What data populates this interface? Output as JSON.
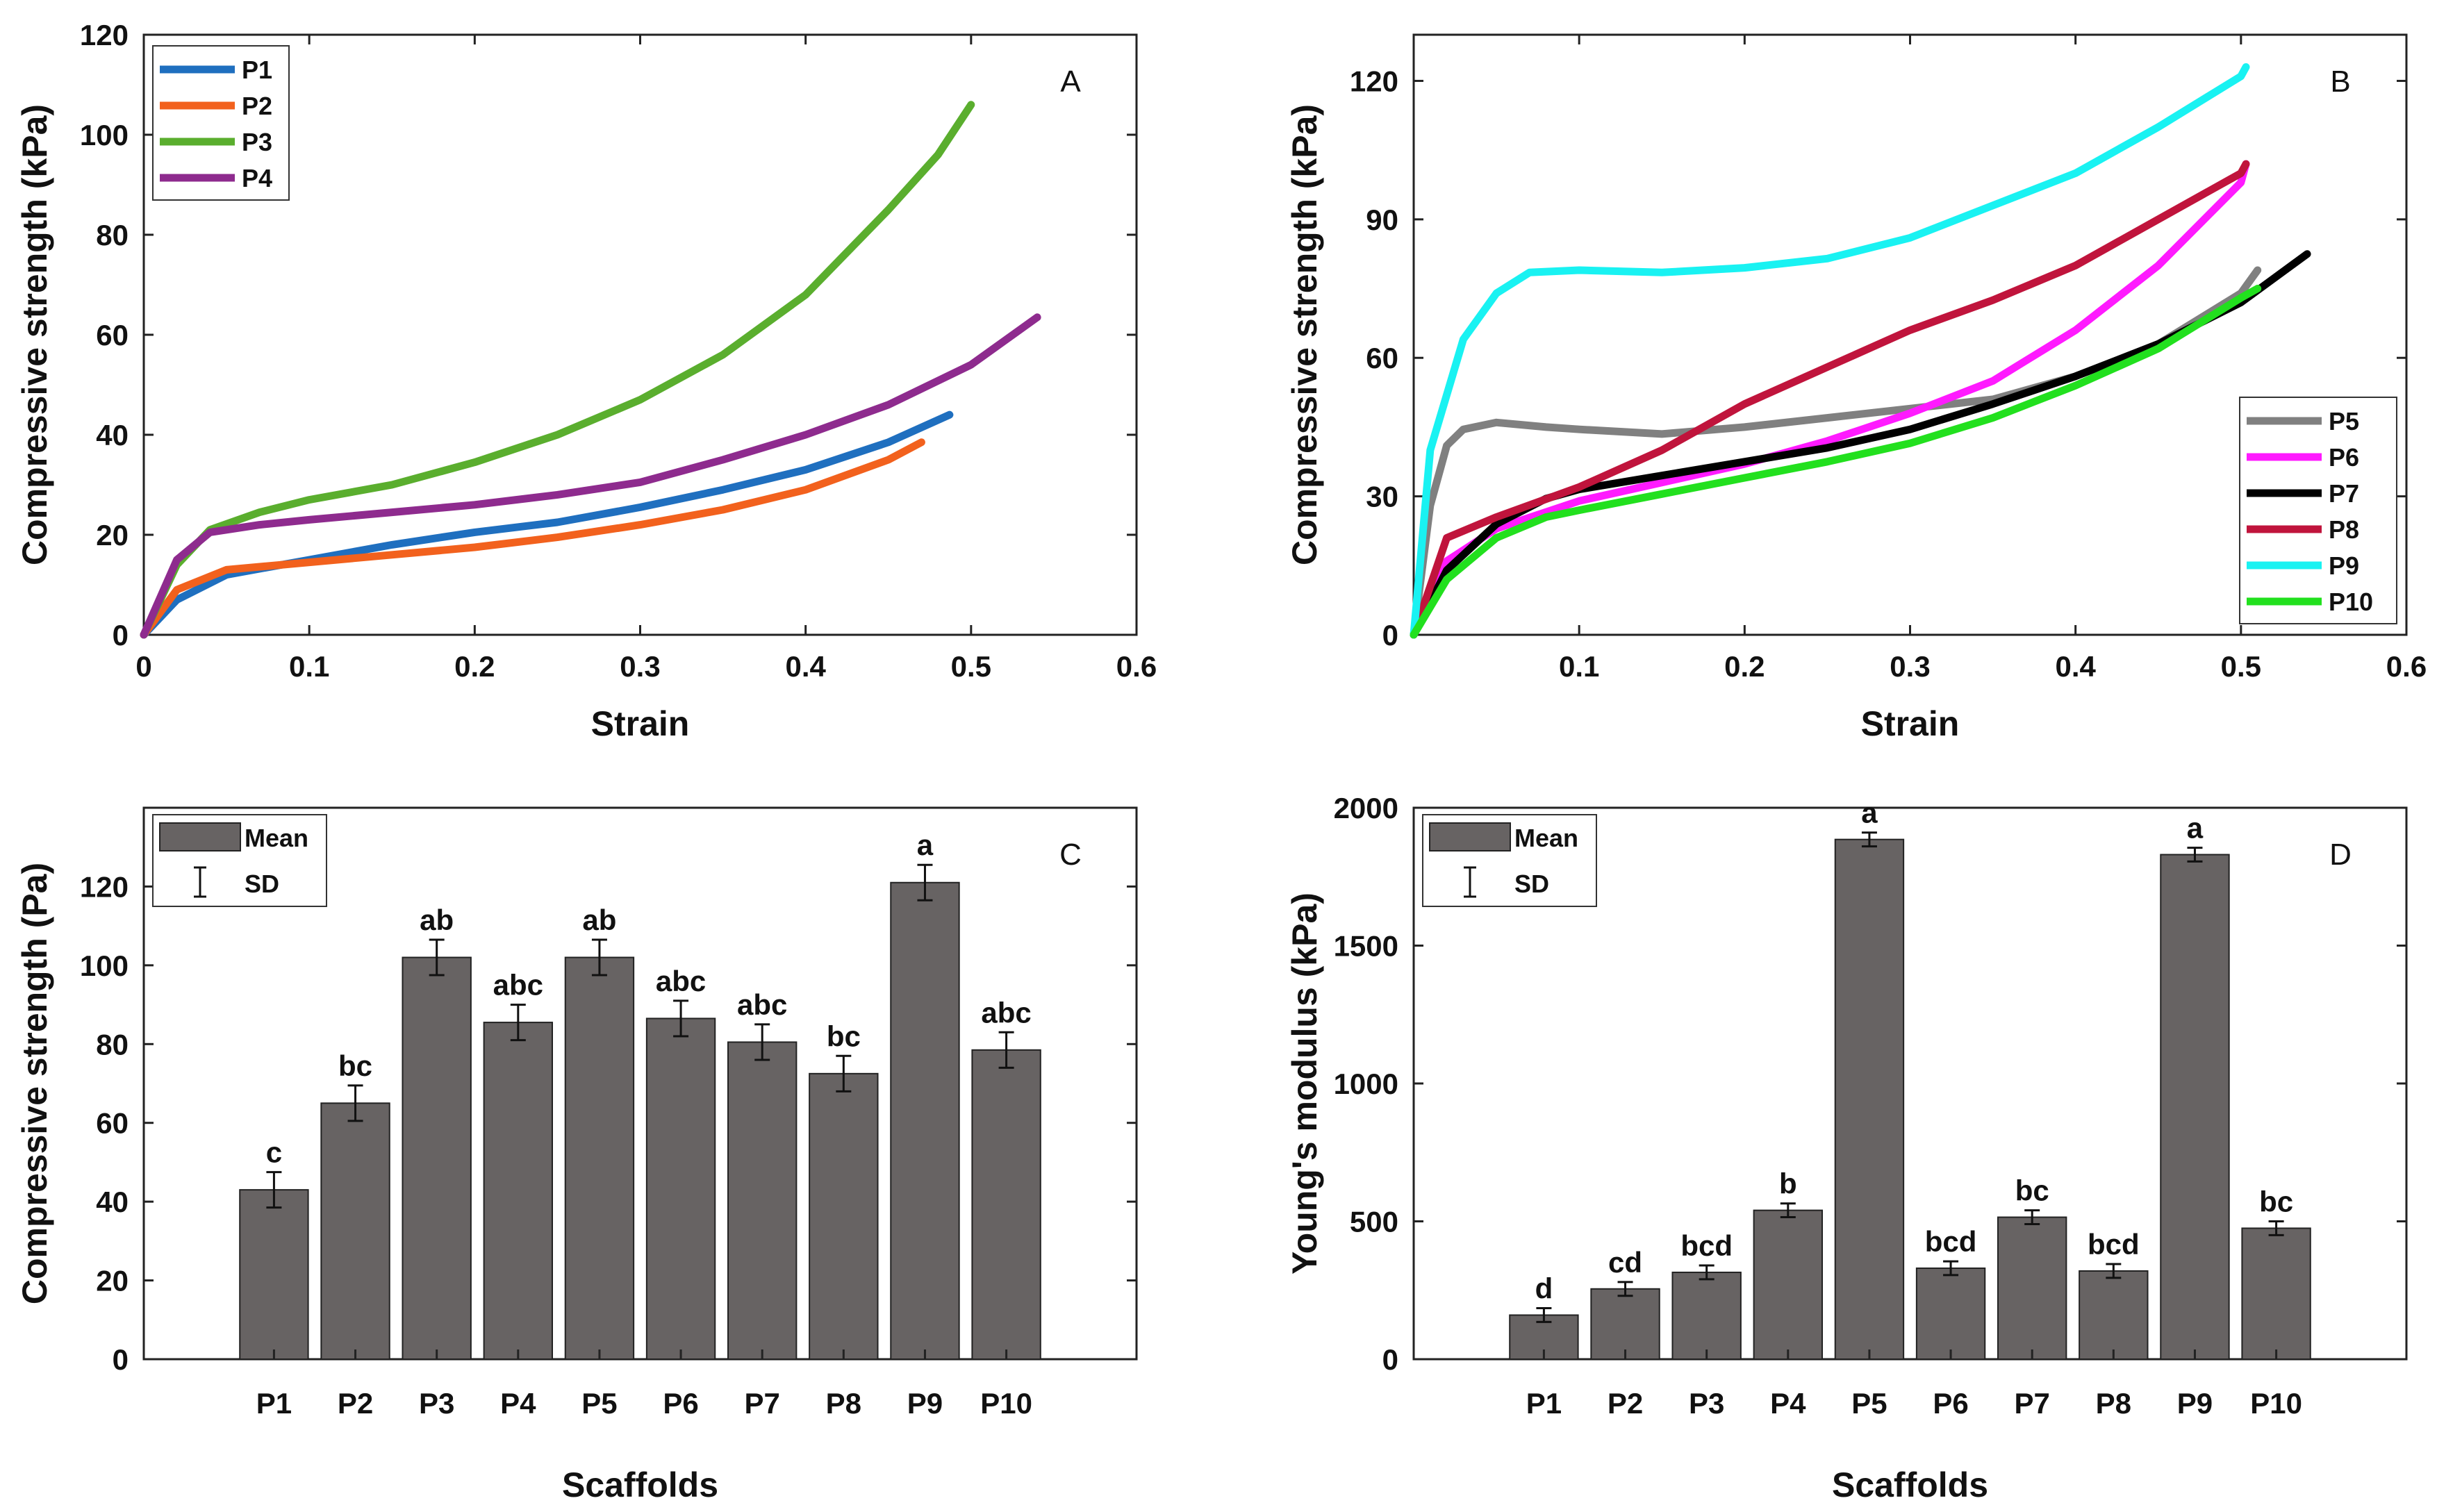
{
  "chart_data": [
    {
      "panel": "A",
      "type": "line",
      "xlabel": "Strain",
      "ylabel": "Compressive strength (kPa)",
      "xlim": [
        0,
        0.6
      ],
      "ylim": [
        0,
        120
      ],
      "xticks": [
        "0",
        "0.1",
        "0.2",
        "0.3",
        "0.4",
        "0.5",
        "0.6"
      ],
      "yticks": [
        "0",
        "20",
        "40",
        "60",
        "80",
        "100",
        "120"
      ],
      "legend_position": "top-left",
      "series": [
        {
          "name": "P1",
          "color": "#1f6fbf",
          "x": [
            0,
            0.02,
            0.05,
            0.1,
            0.15,
            0.2,
            0.25,
            0.3,
            0.35,
            0.4,
            0.45,
            0.487
          ],
          "y": [
            0,
            7,
            12,
            15,
            18,
            20.5,
            22.5,
            25.5,
            29,
            33,
            38.5,
            44
          ]
        },
        {
          "name": "P2",
          "color": "#f2611d",
          "x": [
            0,
            0.02,
            0.05,
            0.1,
            0.15,
            0.2,
            0.25,
            0.3,
            0.35,
            0.4,
            0.45,
            0.47
          ],
          "y": [
            0,
            9,
            13,
            14.5,
            16,
            17.5,
            19.5,
            22,
            25,
            29,
            35,
            38.5
          ]
        },
        {
          "name": "P3",
          "color": "#5aae2e",
          "x": [
            0,
            0.02,
            0.04,
            0.07,
            0.1,
            0.15,
            0.2,
            0.25,
            0.3,
            0.35,
            0.4,
            0.45,
            0.48,
            0.5
          ],
          "y": [
            0,
            14,
            21,
            24.5,
            27,
            30,
            34.5,
            40,
            47,
            56,
            68,
            85,
            96,
            106
          ]
        },
        {
          "name": "P4",
          "color": "#8e2b8e",
          "x": [
            0,
            0.02,
            0.04,
            0.07,
            0.1,
            0.15,
            0.2,
            0.25,
            0.3,
            0.35,
            0.4,
            0.45,
            0.5,
            0.54
          ],
          "y": [
            0,
            15,
            20.5,
            22,
            23,
            24.5,
            26,
            28,
            30.5,
            35,
            40,
            46,
            54,
            63.5
          ]
        }
      ]
    },
    {
      "panel": "B",
      "type": "line",
      "xlabel": "Strain",
      "ylabel": "Compressive strength (kPa)",
      "xlim": [
        0,
        0.6
      ],
      "ylim": [
        0,
        130
      ],
      "xticks": [
        "0.1",
        "0.2",
        "0.3",
        "0.4",
        "0.5",
        "0.6"
      ],
      "yticks": [
        "0",
        "30",
        "60",
        "90",
        "120"
      ],
      "legend_position": "bottom-right",
      "series": [
        {
          "name": "P5",
          "color": "#808080",
          "x": [
            0,
            0.01,
            0.02,
            0.03,
            0.05,
            0.08,
            0.1,
            0.15,
            0.2,
            0.25,
            0.3,
            0.35,
            0.4,
            0.45,
            0.5,
            0.51
          ],
          "y": [
            0,
            28,
            41,
            44.5,
            46,
            45,
            44.5,
            43.5,
            45,
            47,
            49,
            51,
            56,
            63,
            74,
            79
          ]
        },
        {
          "name": "P6",
          "color": "#ff1aff",
          "x": [
            0,
            0.02,
            0.05,
            0.1,
            0.15,
            0.2,
            0.25,
            0.3,
            0.35,
            0.4,
            0.45,
            0.5,
            0.503
          ],
          "y": [
            0,
            16,
            23,
            29,
            33,
            37,
            42,
            48,
            55,
            66,
            80,
            98,
            102
          ]
        },
        {
          "name": "P7",
          "color": "#000000",
          "x": [
            0,
            0.02,
            0.05,
            0.08,
            0.1,
            0.15,
            0.2,
            0.25,
            0.3,
            0.35,
            0.4,
            0.45,
            0.5,
            0.54
          ],
          "y": [
            0,
            14,
            24,
            29.5,
            31.5,
            34.5,
            37.5,
            40.5,
            44.5,
            50,
            56,
            63,
            72,
            82.5
          ]
        },
        {
          "name": "P8",
          "color": "#c0143c",
          "x": [
            0,
            0.02,
            0.05,
            0.1,
            0.15,
            0.2,
            0.25,
            0.3,
            0.35,
            0.4,
            0.45,
            0.5,
            0.503
          ],
          "y": [
            0,
            21,
            25.5,
            32,
            40,
            50,
            58,
            66,
            72.5,
            80,
            90,
            100,
            102
          ]
        },
        {
          "name": "P9",
          "color": "#19f2f2",
          "x": [
            0,
            0.01,
            0.03,
            0.05,
            0.07,
            0.1,
            0.15,
            0.2,
            0.25,
            0.3,
            0.35,
            0.4,
            0.45,
            0.5,
            0.503
          ],
          "y": [
            0,
            40,
            64,
            74,
            78.5,
            79,
            78.5,
            79.5,
            81.5,
            86,
            93,
            100,
            110,
            121,
            123
          ]
        },
        {
          "name": "P10",
          "color": "#22e01e",
          "x": [
            0,
            0.02,
            0.05,
            0.08,
            0.1,
            0.15,
            0.2,
            0.25,
            0.3,
            0.35,
            0.4,
            0.45,
            0.5,
            0.51
          ],
          "y": [
            0,
            12,
            21,
            25.5,
            27,
            30.5,
            34,
            37.5,
            41.5,
            47,
            54,
            62,
            73,
            75
          ]
        }
      ]
    },
    {
      "panel": "C",
      "type": "bar",
      "xlabel": "Scaffolds",
      "ylabel": "Compressive strength (Pa)",
      "ylim": [
        0,
        140
      ],
      "yticks": [
        "0",
        "20",
        "40",
        "60",
        "80",
        "100",
        "120"
      ],
      "categories": [
        "P1",
        "P2",
        "P3",
        "P4",
        "P5",
        "P6",
        "P7",
        "P8",
        "P9",
        "P10"
      ],
      "values": [
        43,
        65,
        102,
        85.5,
        102,
        86.5,
        80.5,
        72.5,
        121,
        78.5
      ],
      "errors": [
        4.5,
        4.5,
        4.5,
        4.5,
        4.5,
        4.5,
        4.5,
        4.5,
        4.5,
        4.5
      ],
      "sig_labels": [
        "c",
        "bc",
        "ab",
        "abc",
        "ab",
        "abc",
        "abc",
        "bc",
        "a",
        "abc"
      ],
      "bar_color": "#676363",
      "legend": [
        "Mean",
        "SD"
      ],
      "legend_position": "top-left"
    },
    {
      "panel": "D",
      "type": "bar",
      "xlabel": "Scaffolds",
      "ylabel": "Young's modulus  (kPa)",
      "ylim": [
        0,
        2000
      ],
      "yticks": [
        "0",
        "500",
        "1000",
        "1500",
        "2000"
      ],
      "categories": [
        "P1",
        "P2",
        "P3",
        "P4",
        "P5",
        "P6",
        "P7",
        "P8",
        "P9",
        "P10"
      ],
      "values": [
        160,
        255,
        315,
        540,
        1885,
        330,
        515,
        320,
        1830,
        475
      ],
      "errors": [
        25,
        25,
        25,
        25,
        25,
        25,
        25,
        25,
        25,
        25
      ],
      "sig_labels": [
        "d",
        "cd",
        "bcd",
        "b",
        "a",
        "bcd",
        "bc",
        "bcd",
        "a",
        "bc"
      ],
      "bar_color": "#676363",
      "legend": [
        "Mean",
        "SD"
      ],
      "legend_position": "top-left"
    }
  ]
}
